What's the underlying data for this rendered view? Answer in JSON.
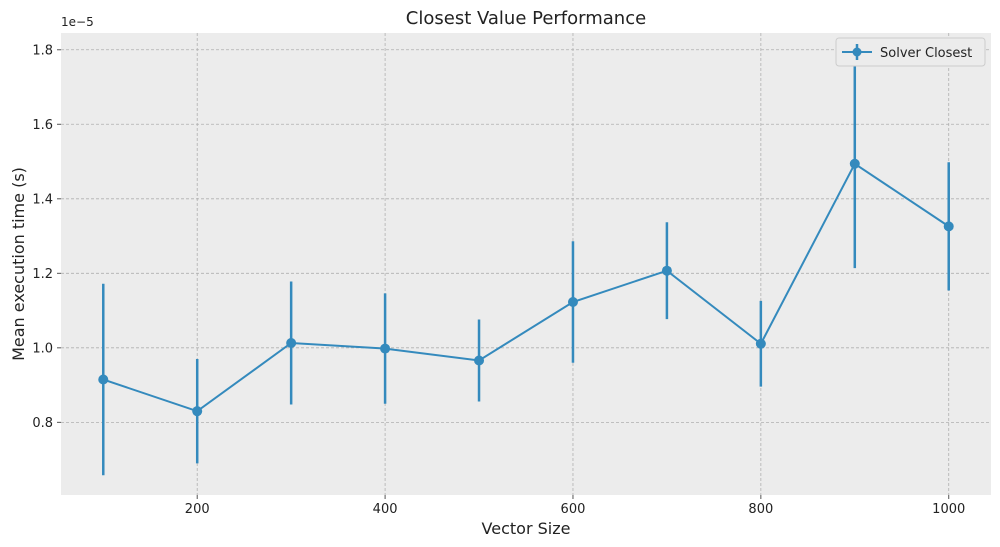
{
  "chart_data": {
    "type": "line",
    "title": "Closest Value Performance",
    "xlabel": "Vector Size",
    "ylabel": "Mean execution time (s)",
    "y_offset_label": "1e−5",
    "x": [
      100,
      200,
      300,
      400,
      500,
      600,
      700,
      800,
      900,
      1000
    ],
    "series": [
      {
        "name": "Solver Closest",
        "color": "#348abd",
        "values": [
          0.915,
          0.83,
          1.013,
          0.998,
          0.966,
          1.123,
          1.207,
          1.011,
          1.494,
          1.326
        ],
        "errors": [
          0.257,
          0.14,
          0.165,
          0.148,
          0.11,
          0.163,
          0.13,
          0.115,
          0.28,
          0.172
        ]
      }
    ],
    "xlim": [
      55,
      1045
    ],
    "ylim": [
      0.605,
      1.845
    ],
    "x_ticks": [
      200,
      400,
      600,
      800,
      1000
    ],
    "y_ticks": [
      0.8,
      1.0,
      1.2,
      1.4,
      1.6,
      1.8
    ],
    "x_tick_labels": [
      "200",
      "400",
      "600",
      "800",
      "1000"
    ],
    "y_tick_labels": [
      "0.8",
      "1.0",
      "1.2",
      "1.4",
      "1.6",
      "1.8"
    ],
    "grid": true,
    "legend_position": "top-right",
    "background_color": "#ececec"
  }
}
